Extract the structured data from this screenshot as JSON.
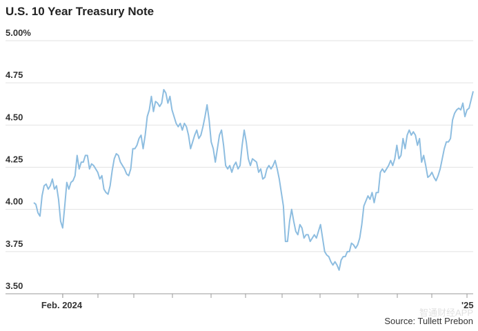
{
  "chart_data": {
    "type": "line",
    "title": "U.S. 10 Year Treasury Note",
    "source": "Source: Tullett Prebon",
    "watermark": "智通财经APP",
    "color": "#8dbde0",
    "grid": true,
    "ylim": [
      3.5,
      5.0
    ],
    "yticks": [
      {
        "value": 3.5,
        "label": "3.50"
      },
      3.75,
      {
        "value": 4.0,
        "label": "4.00"
      },
      4.25,
      {
        "value": 4.5,
        "label": "4.50"
      },
      4.75,
      {
        "value": 5.0,
        "label": "5.00%"
      }
    ],
    "xlim": [
      0,
      213
    ],
    "xticks": [
      {
        "value": 14,
        "label": "Feb. 2024"
      },
      {
        "value": 210,
        "label": "'25"
      }
    ],
    "values": [
      4.04,
      4.03,
      3.98,
      3.96,
      4.08,
      4.14,
      4.15,
      4.12,
      4.14,
      4.18,
      4.12,
      4.14,
      4.06,
      3.93,
      3.89,
      4.02,
      4.16,
      4.12,
      4.16,
      4.17,
      4.2,
      4.32,
      4.24,
      4.28,
      4.28,
      4.32,
      4.32,
      4.24,
      4.27,
      4.26,
      4.24,
      4.22,
      4.18,
      4.2,
      4.12,
      4.1,
      4.09,
      4.14,
      4.23,
      4.3,
      4.33,
      4.32,
      4.28,
      4.26,
      4.24,
      4.21,
      4.2,
      4.24,
      4.36,
      4.36,
      4.38,
      4.42,
      4.44,
      4.36,
      4.44,
      4.55,
      4.59,
      4.67,
      4.58,
      4.64,
      4.63,
      4.61,
      4.63,
      4.71,
      4.69,
      4.63,
      4.67,
      4.59,
      4.55,
      4.51,
      4.49,
      4.51,
      4.47,
      4.51,
      4.49,
      4.44,
      4.36,
      4.4,
      4.44,
      4.47,
      4.42,
      4.44,
      4.49,
      4.55,
      4.62,
      4.53,
      4.4,
      4.36,
      4.28,
      4.36,
      4.44,
      4.47,
      4.38,
      4.26,
      4.24,
      4.26,
      4.22,
      4.26,
      4.28,
      4.24,
      4.26,
      4.38,
      4.47,
      4.4,
      4.3,
      4.26,
      4.3,
      4.29,
      4.28,
      4.22,
      4.24,
      4.18,
      4.19,
      4.24,
      4.26,
      4.24,
      4.26,
      4.29,
      4.24,
      4.18,
      4.1,
      4.02,
      3.81,
      3.81,
      3.93,
      4.0,
      3.93,
      3.87,
      3.85,
      3.91,
      3.89,
      3.83,
      3.85,
      3.85,
      3.81,
      3.83,
      3.85,
      3.83,
      3.87,
      3.91,
      3.83,
      3.75,
      3.73,
      3.72,
      3.69,
      3.67,
      3.69,
      3.67,
      3.64,
      3.7,
      3.72,
      3.72,
      3.75,
      3.75,
      3.8,
      3.79,
      3.77,
      3.79,
      3.83,
      3.91,
      4.02,
      4.05,
      4.08,
      4.06,
      4.1,
      4.04,
      4.1,
      4.1,
      4.22,
      4.24,
      4.22,
      4.24,
      4.26,
      4.29,
      4.26,
      4.3,
      4.38,
      4.3,
      4.32,
      4.42,
      4.36,
      4.44,
      4.47,
      4.44,
      4.46,
      4.44,
      4.38,
      4.42,
      4.28,
      4.32,
      4.26,
      4.19,
      4.2,
      4.22,
      4.19,
      4.17,
      4.2,
      4.24,
      4.3,
      4.36,
      4.4,
      4.4,
      4.42,
      4.53,
      4.57,
      4.59,
      4.6,
      4.59,
      4.63,
      4.55,
      4.59,
      4.6,
      4.65,
      4.7
    ]
  }
}
